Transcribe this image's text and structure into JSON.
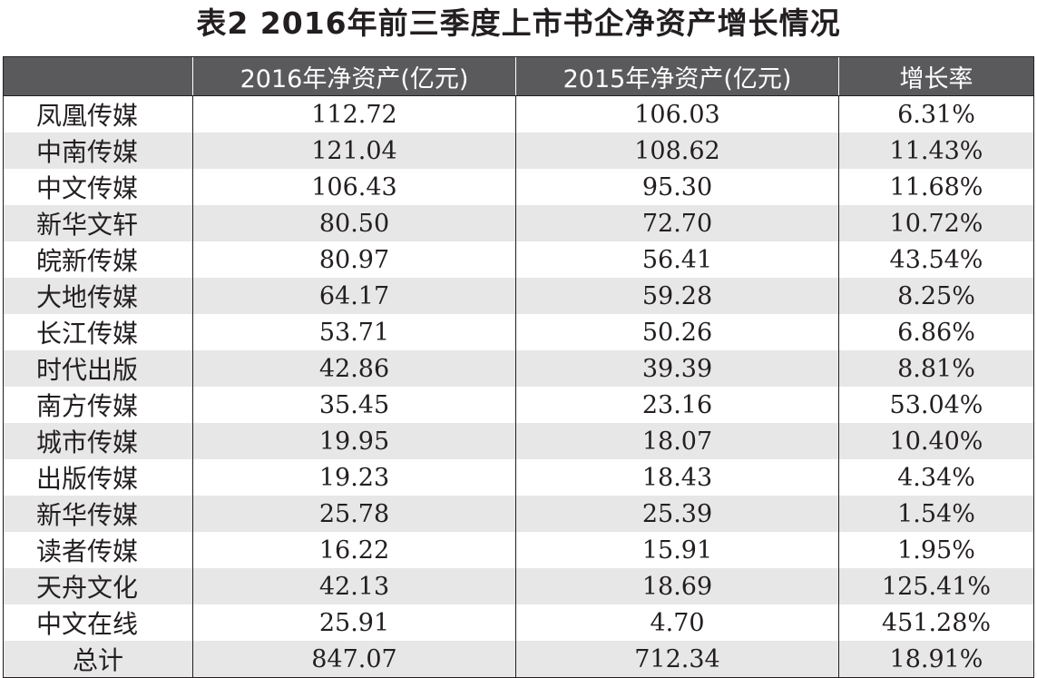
{
  "title": "表2 2016年前三季度上市书企净资产增长情况",
  "chart_data": {
    "type": "table",
    "title": "表2 2016年前三季度上市书企净资产增长情况",
    "columns": [
      "",
      "2016年净资产(亿元)",
      "2015年净资产(亿元)",
      "增长率"
    ],
    "rows": [
      [
        "凤凰传媒",
        "112.72",
        "106.03",
        "6.31%"
      ],
      [
        "中南传媒",
        "121.04",
        "108.62",
        "11.43%"
      ],
      [
        "中文传媒",
        "106.43",
        "95.30",
        "11.68%"
      ],
      [
        "新华文轩",
        "80.50",
        "72.70",
        "10.72%"
      ],
      [
        "皖新传媒",
        "80.97",
        "56.41",
        "43.54%"
      ],
      [
        "大地传媒",
        "64.17",
        "59.28",
        "8.25%"
      ],
      [
        "长江传媒",
        "53.71",
        "50.26",
        "6.86%"
      ],
      [
        "时代出版",
        "42.86",
        "39.39",
        "8.81%"
      ],
      [
        "南方传媒",
        "35.45",
        "23.16",
        "53.04%"
      ],
      [
        "城市传媒",
        "19.95",
        "18.07",
        "10.40%"
      ],
      [
        "出版传媒",
        "19.23",
        "18.43",
        "4.34%"
      ],
      [
        "新华传媒",
        "25.78",
        "25.39",
        "1.54%"
      ],
      [
        "读者传媒",
        "16.22",
        "15.91",
        "1.95%"
      ],
      [
        "天舟文化",
        "42.13",
        "18.69",
        "125.41%"
      ],
      [
        "中文在线",
        "25.91",
        "4.70",
        "451.28%"
      ],
      [
        "总计",
        "847.07",
        "712.34",
        "18.91%"
      ]
    ]
  },
  "colors": {
    "header_bg": "#5a5a5c",
    "header_text": "#ffffff",
    "shaded_row": "#e7e7e8",
    "text": "#231f20"
  }
}
